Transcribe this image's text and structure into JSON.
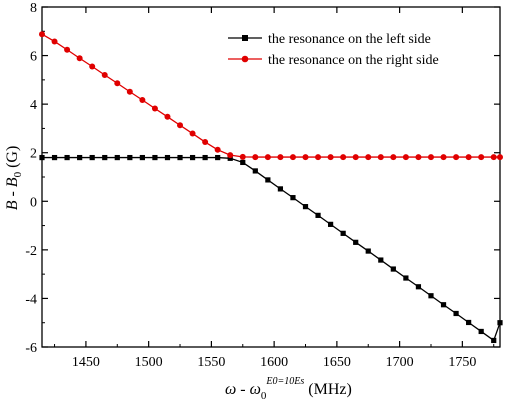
{
  "chart_data": {
    "type": "line",
    "xlabel": {
      "omega": "ω",
      "dash": "-",
      "omega0": "ω",
      "sub": "0",
      "sup": "E0=10Es",
      "unit": "(MHz)"
    },
    "ylabel": {
      "b": "B",
      "dash": "-",
      "b0": "B",
      "sub": "0",
      "unit": "(G)"
    },
    "xlim": [
      1415,
      1780
    ],
    "ylim": [
      -6,
      8
    ],
    "xticks": [
      "1450",
      "1500",
      "1550",
      "1600",
      "1650",
      "1700",
      "1750"
    ],
    "yticks": [
      "-6",
      "-4",
      "-2",
      "0",
      "2",
      "4",
      "6",
      "8"
    ],
    "legend_position": "top-right",
    "series": [
      {
        "name": "the resonance on the left side",
        "color": "#000000",
        "marker": "square",
        "x": [
          1415,
          1425,
          1435,
          1445,
          1455,
          1465,
          1475,
          1485,
          1495,
          1505,
          1515,
          1525,
          1535,
          1545,
          1555,
          1565,
          1575,
          1585,
          1595,
          1605,
          1615,
          1625,
          1635,
          1645,
          1655,
          1665,
          1675,
          1685,
          1695,
          1705,
          1715,
          1725,
          1735,
          1745,
          1755,
          1765,
          1775,
          1780
        ],
        "y": [
          1.8,
          1.8,
          1.8,
          1.8,
          1.8,
          1.8,
          1.8,
          1.8,
          1.8,
          1.8,
          1.8,
          1.8,
          1.8,
          1.8,
          1.8,
          1.77,
          1.6,
          1.25,
          0.88,
          0.51,
          0.15,
          -0.22,
          -0.58,
          -0.95,
          -1.32,
          -1.69,
          -2.05,
          -2.42,
          -2.79,
          -3.16,
          -3.52,
          -3.89,
          -4.26,
          -4.62,
          -4.99,
          -5.36,
          -5.73,
          -5.0
        ]
      },
      {
        "name": "the resonance on the right side",
        "color": "#e00000",
        "marker": "circle",
        "x": [
          1415,
          1425,
          1435,
          1445,
          1455,
          1465,
          1475,
          1485,
          1495,
          1505,
          1515,
          1525,
          1535,
          1545,
          1555,
          1565,
          1575,
          1585,
          1595,
          1605,
          1615,
          1625,
          1635,
          1645,
          1655,
          1665,
          1675,
          1685,
          1695,
          1705,
          1715,
          1725,
          1735,
          1745,
          1755,
          1765,
          1775,
          1780
        ],
        "y": [
          6.88,
          6.58,
          6.24,
          5.89,
          5.55,
          5.2,
          4.86,
          4.51,
          4.17,
          3.82,
          3.48,
          3.13,
          2.79,
          2.44,
          2.12,
          1.9,
          1.83,
          1.82,
          1.82,
          1.82,
          1.82,
          1.82,
          1.82,
          1.82,
          1.82,
          1.82,
          1.82,
          1.82,
          1.82,
          1.82,
          1.82,
          1.82,
          1.82,
          1.82,
          1.82,
          1.82,
          1.82,
          1.82
        ]
      }
    ]
  }
}
